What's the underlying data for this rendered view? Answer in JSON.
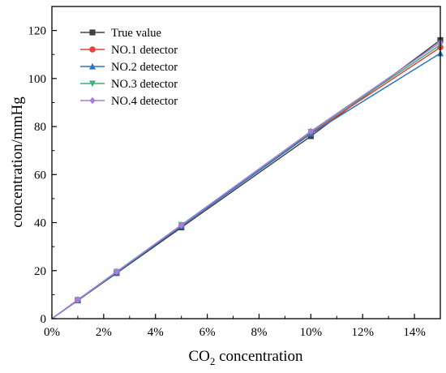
{
  "chart_data": {
    "type": "line",
    "x": [
      0,
      1,
      2.5,
      5,
      10,
      15
    ],
    "xlabel_main": "CO",
    "xlabel_sub": "2",
    "xlabel_rest": " concentration",
    "ylabel": "concentration/mmHg",
    "xlim": [
      0,
      15
    ],
    "ylim": [
      0,
      130
    ],
    "xticks": [
      0,
      2,
      4,
      6,
      8,
      10,
      12,
      14
    ],
    "xtick_labels": [
      "0%",
      "2%",
      "4%",
      "6%",
      "8%",
      "10%",
      "12%",
      "14%"
    ],
    "yticks": [
      0,
      20,
      40,
      60,
      80,
      100,
      120
    ],
    "ytick_labels": [
      "0",
      "20",
      "40",
      "60",
      "80",
      "100",
      "120"
    ],
    "grid": false,
    "legend_position": "top-left",
    "series": [
      {
        "name": "True value",
        "color": "#404040",
        "marker": "square",
        "values": [
          0,
          7.6,
          19.0,
          38.0,
          76.0,
          116.0
        ]
      },
      {
        "name": "NO.1 detector",
        "color": "#e8413f",
        "marker": "circle",
        "values": [
          0,
          7.7,
          19.4,
          38.7,
          77.3,
          113.0
        ]
      },
      {
        "name": "NO.2 detector",
        "color": "#2874c5",
        "marker": "triangle-up",
        "values": [
          0,
          7.7,
          19.3,
          38.6,
          77.0,
          110.5
        ]
      },
      {
        "name": "NO.3 detector",
        "color": "#3cb371",
        "marker": "triangle-down",
        "values": [
          0,
          7.8,
          19.5,
          39.0,
          77.8,
          114.0
        ]
      },
      {
        "name": "NO.4 detector",
        "color": "#a57ee0",
        "marker": "diamond",
        "values": [
          0,
          7.9,
          19.6,
          39.0,
          78.0,
          115.0
        ]
      }
    ]
  }
}
